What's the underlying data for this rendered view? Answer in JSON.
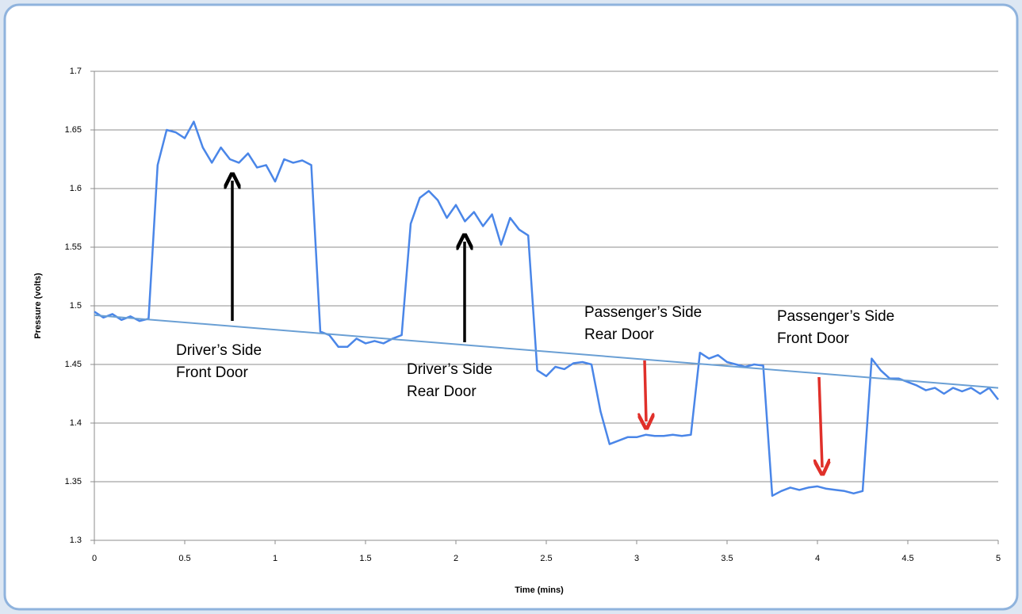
{
  "chart_data": {
    "type": "line",
    "xlabel": "Time (mins)",
    "ylabel": "Pressure (volts)",
    "x": [
      0,
      0.05,
      0.1,
      0.15,
      0.2,
      0.25,
      0.3,
      0.35,
      0.4,
      0.45,
      0.5,
      0.55,
      0.6,
      0.65,
      0.7,
      0.75,
      0.8,
      0.85,
      0.9,
      0.95,
      1,
      1.05,
      1.1,
      1.15,
      1.2,
      1.25,
      1.3,
      1.35,
      1.4,
      1.45,
      1.5,
      1.55,
      1.6,
      1.65,
      1.7,
      1.75,
      1.8,
      1.85,
      1.9,
      1.95,
      2,
      2.05,
      2.1,
      2.15,
      2.2,
      2.25,
      2.3,
      2.35,
      2.4,
      2.45,
      2.5,
      2.55,
      2.6,
      2.65,
      2.7,
      2.75,
      2.8,
      2.85,
      2.9,
      2.95,
      3,
      3.05,
      3.1,
      3.15,
      3.2,
      3.25,
      3.3,
      3.35,
      3.4,
      3.45,
      3.5,
      3.55,
      3.6,
      3.65,
      3.7,
      3.75,
      3.8,
      3.85,
      3.9,
      3.95,
      4,
      4.05,
      4.1,
      4.15,
      4.2,
      4.25,
      4.3,
      4.35,
      4.4,
      4.45,
      4.5,
      4.55,
      4.6,
      4.65,
      4.7,
      4.75,
      4.8,
      4.85,
      4.9,
      4.95,
      5
    ],
    "series": [
      {
        "color": "#4a86e8",
        "values": [
          1.495,
          1.49,
          1.493,
          1.488,
          1.491,
          1.487,
          1.489,
          1.62,
          1.65,
          1.648,
          1.643,
          1.657,
          1.635,
          1.622,
          1.635,
          1.625,
          1.622,
          1.63,
          1.618,
          1.62,
          1.606,
          1.625,
          1.622,
          1.624,
          1.62,
          1.478,
          1.475,
          1.465,
          1.465,
          1.472,
          1.468,
          1.47,
          1.468,
          1.472,
          1.475,
          1.57,
          1.592,
          1.598,
          1.59,
          1.575,
          1.586,
          1.572,
          1.58,
          1.568,
          1.578,
          1.552,
          1.575,
          1.565,
          1.56,
          1.445,
          1.44,
          1.448,
          1.446,
          1.451,
          1.452,
          1.45,
          1.41,
          1.382,
          1.385,
          1.388,
          1.388,
          1.39,
          1.389,
          1.389,
          1.39,
          1.389,
          1.39,
          1.46,
          1.455,
          1.458,
          1.452,
          1.45,
          1.448,
          1.45,
          1.449,
          1.338,
          1.342,
          1.345,
          1.343,
          1.345,
          1.346,
          1.344,
          1.343,
          1.342,
          1.34,
          1.342,
          1.455,
          1.445,
          1.438,
          1.438,
          1.435,
          1.432,
          1.428,
          1.43,
          1.425,
          1.43,
          1.427,
          1.43,
          1.425,
          1.43,
          1.42
        ]
      }
    ],
    "trend": {
      "x": [
        0,
        5
      ],
      "values": [
        1.492,
        1.43
      ],
      "color": "#6a9fd4"
    },
    "annotations": [
      [
        "Driver’s Side",
        "Front Door"
      ],
      [
        "Driver’s Side",
        "Rear Door"
      ],
      [
        "Passenger’s Side",
        "Rear Door"
      ],
      [
        "Passenger’s Side",
        "Front Door"
      ]
    ],
    "xlim": [
      0,
      5
    ],
    "xticks": [
      0,
      0.5,
      1,
      1.5,
      2,
      2.5,
      3,
      3.5,
      4,
      4.5,
      5
    ],
    "ylim": [
      1.3,
      1.7
    ],
    "yticks": [
      1.3,
      1.35,
      1.4,
      1.45,
      1.5,
      1.55,
      1.6,
      1.65,
      1.7
    ],
    "grid": true
  }
}
